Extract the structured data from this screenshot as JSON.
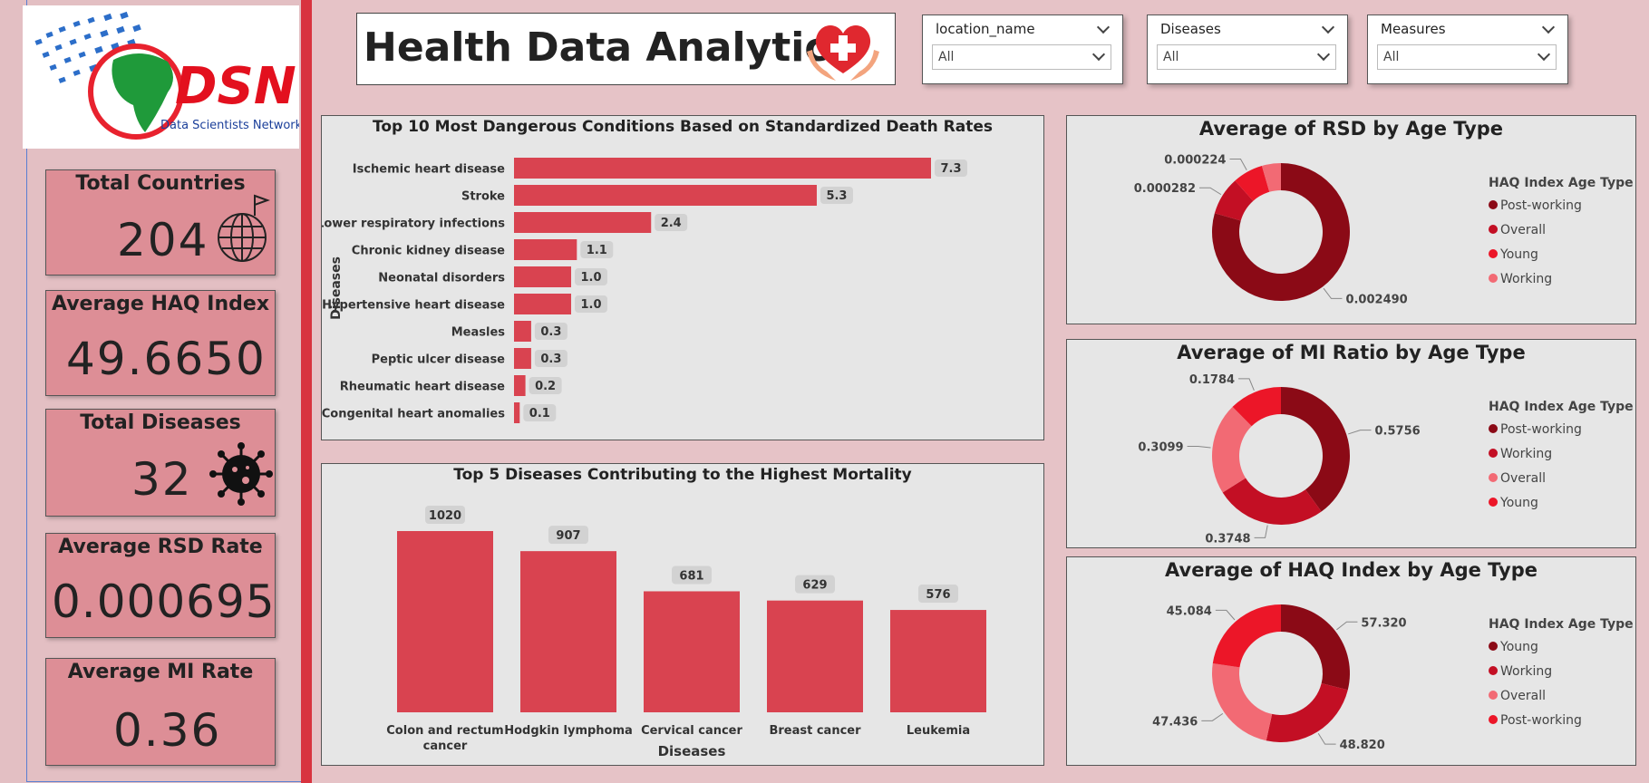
{
  "logo": {
    "brand": "DSN",
    "tagline": "Data Scientists Network"
  },
  "header": {
    "title": "Health Data Analytics"
  },
  "slicers": [
    {
      "label": "location_name",
      "value": "All"
    },
    {
      "label": "Diseases",
      "value": "All"
    },
    {
      "label": "Measures",
      "value": "All"
    }
  ],
  "kpis": [
    {
      "title": "Total Countries",
      "value": "204",
      "icon": "globe-icon"
    },
    {
      "title": "Average HAQ Index",
      "value": "49.6650"
    },
    {
      "title": "Total Diseases",
      "value": "32",
      "icon": "virus-icon"
    },
    {
      "title": "Average RSD Rate",
      "value": "0.000695"
    },
    {
      "title": "Average MI Rate",
      "value": "0.36"
    }
  ],
  "colors": {
    "bar": "#d94350",
    "dark": "#8b0a16",
    "mid": "#c30f24",
    "light": "#f26a74",
    "bright": "#ec1628"
  },
  "chart_data": [
    {
      "type": "bar",
      "orientation": "horizontal",
      "title": "Top 10 Most Dangerous Conditions Based on Standardized Death Rates",
      "ylabel": "Diseases",
      "categories": [
        "Ischemic heart disease",
        "Stroke",
        "Lower respiratory infections",
        "Chronic kidney disease",
        "Neonatal disorders",
        "Hypertensive heart disease",
        "Measles",
        "Peptic ulcer disease",
        "Rheumatic heart disease",
        "Congenital heart anomalies"
      ],
      "values": [
        7.3,
        5.3,
        2.4,
        1.1,
        1.0,
        1.0,
        0.3,
        0.3,
        0.2,
        0.1
      ],
      "labels": [
        "7.3",
        "5.3",
        "2.4",
        "1.1",
        "1.0",
        "1.0",
        "0.3",
        "0.3",
        "0.2",
        "0.1"
      ]
    },
    {
      "type": "bar",
      "title": "Top 5 Diseases Contributing to the Highest Mortality",
      "xlabel": "Diseases",
      "categories": [
        [
          "Colon and rectum",
          "cancer"
        ],
        [
          "Hodgkin lymphoma"
        ],
        [
          "Cervical cancer"
        ],
        [
          "Breast cancer"
        ],
        [
          "Leukemia"
        ]
      ],
      "values": [
        1020,
        907,
        681,
        629,
        576
      ],
      "labels": [
        "1020",
        "907",
        "681",
        "629",
        "576"
      ]
    },
    {
      "type": "pie",
      "donut": true,
      "title": "Average of RSD by Age Type",
      "legend_title": "HAQ Index Age Type",
      "legend": [
        "Post-working",
        "Overall",
        "Young",
        "Working"
      ],
      "slices": [
        {
          "name": "Post-working",
          "value": 0.00249,
          "label": "0.002490",
          "color": "#8b0a16"
        },
        {
          "name": "Overall",
          "value": 0.000282,
          "label": "0.000282",
          "color": "#c30f24"
        },
        {
          "name": "Young",
          "value": 0.000224,
          "label": "0.000224",
          "color": "#ec1628"
        },
        {
          "name": "Working",
          "value": 0.00014,
          "label": "",
          "color": "#f26a74"
        }
      ]
    },
    {
      "type": "pie",
      "donut": true,
      "title": "Average of MI Ratio by Age Type",
      "legend_title": "HAQ Index Age Type",
      "legend": [
        "Post-working",
        "Working",
        "Overall",
        "Young"
      ],
      "slices": [
        {
          "name": "Post-working",
          "value": 0.5756,
          "label": "0.5756",
          "color": "#8b0a16"
        },
        {
          "name": "Working",
          "value": 0.3748,
          "label": "0.3748",
          "color": "#c30f24"
        },
        {
          "name": "Overall",
          "value": 0.3099,
          "label": "0.3099",
          "color": "#f26a74"
        },
        {
          "name": "Young",
          "value": 0.1784,
          "label": "0.1784",
          "color": "#ec1628"
        }
      ]
    },
    {
      "type": "pie",
      "donut": true,
      "title": "Average of HAQ Index by Age Type",
      "legend_title": "HAQ Index Age Type",
      "legend": [
        "Young",
        "Working",
        "Overall",
        "Post-working"
      ],
      "slices": [
        {
          "name": "Young",
          "value": 57.32,
          "label": "57.320",
          "color": "#8b0a16"
        },
        {
          "name": "Working",
          "value": 48.82,
          "label": "48.820",
          "color": "#c30f24"
        },
        {
          "name": "Overall",
          "value": 47.436,
          "label": "47.436",
          "color": "#f26a74"
        },
        {
          "name": "Post-working",
          "value": 45.084,
          "label": "45.084",
          "color": "#ec1628"
        }
      ]
    }
  ]
}
